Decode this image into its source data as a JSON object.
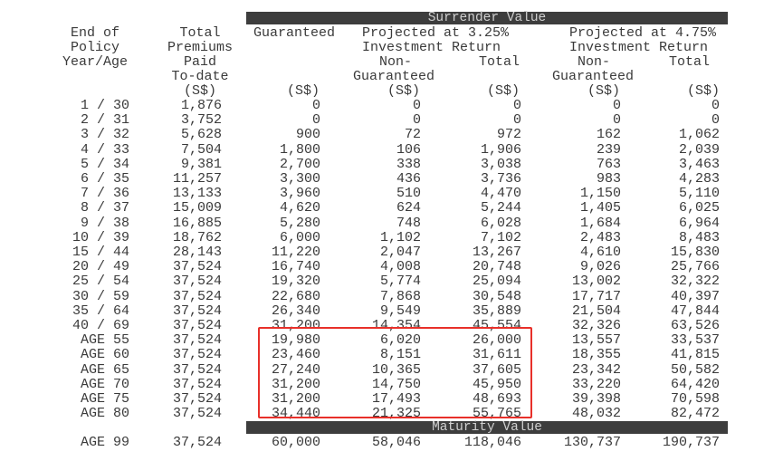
{
  "header": {
    "surrender_title": "Surrender Value",
    "maturity_title": "Maturity Value",
    "col_year": [
      "End of",
      "Policy",
      "Year/Age"
    ],
    "col_premiums": [
      "Total",
      "Premiums",
      "Paid",
      "To-date",
      "(S$)"
    ],
    "col_guaranteed": [
      "Guaranteed",
      "(S$)"
    ],
    "proj1": [
      "Projected at 3.25%",
      "Investment Return"
    ],
    "proj1_ng": [
      "Non-",
      "Guaranteed",
      "(S$)"
    ],
    "proj1_total": [
      "Total",
      "(S$)"
    ],
    "proj2": [
      "Projected at 4.75%",
      "Investment Return"
    ],
    "proj2_ng": [
      "Non-",
      "Guaranteed",
      "(S$)"
    ],
    "proj2_total": [
      "Total",
      "(S$)"
    ]
  },
  "rows": [
    [
      "1 / 30",
      "1,876",
      "0",
      "0",
      "0",
      "0",
      "0"
    ],
    [
      "2 / 31",
      "3,752",
      "0",
      "0",
      "0",
      "0",
      "0"
    ],
    [
      "3 / 32",
      "5,628",
      "900",
      "72",
      "972",
      "162",
      "1,062"
    ],
    [
      "4 / 33",
      "7,504",
      "1,800",
      "106",
      "1,906",
      "239",
      "2,039"
    ],
    [
      "5 / 34",
      "9,381",
      "2,700",
      "338",
      "3,038",
      "763",
      "3,463"
    ],
    [
      "6 / 35",
      "11,257",
      "3,300",
      "436",
      "3,736",
      "983",
      "4,283"
    ],
    [
      "7 / 36",
      "13,133",
      "3,960",
      "510",
      "4,470",
      "1,150",
      "5,110"
    ],
    [
      "8 / 37",
      "15,009",
      "4,620",
      "624",
      "5,244",
      "1,405",
      "6,025"
    ],
    [
      "9 / 38",
      "16,885",
      "5,280",
      "748",
      "6,028",
      "1,684",
      "6,964"
    ],
    [
      "10 / 39",
      "18,762",
      "6,000",
      "1,102",
      "7,102",
      "2,483",
      "8,483"
    ],
    [
      "15 / 44",
      "28,143",
      "11,220",
      "2,047",
      "13,267",
      "4,610",
      "15,830"
    ],
    [
      "20 / 49",
      "37,524",
      "16,740",
      "4,008",
      "20,748",
      "9,026",
      "25,766"
    ],
    [
      "25 / 54",
      "37,524",
      "19,320",
      "5,774",
      "25,094",
      "13,002",
      "32,322"
    ],
    [
      "30 / 59",
      "37,524",
      "22,680",
      "7,868",
      "30,548",
      "17,717",
      "40,397"
    ],
    [
      "35 / 64",
      "37,524",
      "26,340",
      "9,549",
      "35,889",
      "21,504",
      "47,844"
    ],
    [
      "40 / 69",
      "37,524",
      "31,200",
      "14,354",
      "45,554",
      "32,326",
      "63,526"
    ],
    [
      "AGE 55",
      "37,524",
      "19,980",
      "6,020",
      "26,000",
      "13,557",
      "33,537"
    ],
    [
      "AGE 60",
      "37,524",
      "23,460",
      "8,151",
      "31,611",
      "18,355",
      "41,815"
    ],
    [
      "AGE 65",
      "37,524",
      "27,240",
      "10,365",
      "37,605",
      "23,342",
      "50,582"
    ],
    [
      "AGE 70",
      "37,524",
      "31,200",
      "14,750",
      "45,950",
      "33,220",
      "64,420"
    ],
    [
      "AGE 75",
      "37,524",
      "31,200",
      "17,493",
      "48,693",
      "39,398",
      "70,598"
    ],
    [
      "AGE 80",
      "37,524",
      "34,440",
      "21,325",
      "55,765",
      "48,032",
      "82,472"
    ]
  ],
  "maturity_row": [
    "AGE 99",
    "37,524",
    "60,000",
    "58,046",
    "118,046",
    "130,737",
    "190,737"
  ],
  "highlight_color": "#e8302a"
}
